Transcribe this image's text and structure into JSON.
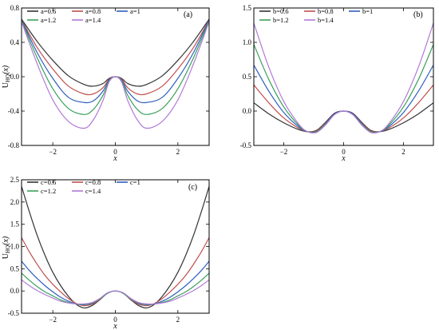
{
  "chart_data": [
    {
      "type": "line",
      "panel": "(a)",
      "ylabel": "U",
      "ylabel_sub": "HQ",
      "ylabel_arg": "(x)",
      "xlabel": "x",
      "xlim": [
        -3,
        3
      ],
      "ylim": [
        -0.8,
        0.8
      ],
      "xticks": [
        -2,
        0,
        2
      ],
      "yticks": [
        -0.8,
        -0.4,
        0.0,
        0.4,
        0.8
      ],
      "ytick_labels": [
        "-0.8",
        "-0.4",
        "0.0",
        "0.4",
        "0.8"
      ],
      "xtick_labels": [
        "−2",
        "0",
        "2"
      ],
      "legend_placement": "top",
      "series": [
        {
          "name": "a=0.6",
          "color": "#333333",
          "x": [
            -3,
            -2.5,
            -2,
            -1.5,
            -1,
            -0.7,
            -0.4,
            -0.2,
            0,
            0.2,
            0.4,
            0.7,
            1,
            1.5,
            2,
            2.5,
            3
          ],
          "y": [
            0.67,
            0.41,
            0.19,
            0.01,
            -0.09,
            -0.11,
            -0.08,
            -0.02,
            0.0,
            -0.02,
            -0.08,
            -0.11,
            -0.09,
            0.01,
            0.19,
            0.41,
            0.67
          ]
        },
        {
          "name": "a=0.8",
          "color": "#c0504d",
          "x": [
            -3,
            -2.5,
            -2,
            -1.5,
            -1,
            -0.7,
            -0.4,
            -0.2,
            0,
            0.2,
            0.4,
            0.7,
            1,
            1.5,
            2,
            2.5,
            3
          ],
          "y": [
            0.66,
            0.34,
            0.09,
            -0.11,
            -0.2,
            -0.2,
            -0.13,
            -0.03,
            0.0,
            -0.03,
            -0.13,
            -0.2,
            -0.2,
            -0.11,
            0.09,
            0.34,
            0.66
          ]
        },
        {
          "name": "a=1",
          "color": "#2e5fbf",
          "x": [
            -3,
            -2.5,
            -2,
            -1.5,
            -1,
            -0.7,
            -0.4,
            -0.2,
            0,
            0.2,
            0.4,
            0.7,
            1,
            1.5,
            2,
            2.5,
            3
          ],
          "y": [
            0.66,
            0.28,
            -0.02,
            -0.24,
            -0.3,
            -0.28,
            -0.17,
            -0.04,
            0.0,
            -0.04,
            -0.17,
            -0.28,
            -0.3,
            -0.24,
            -0.02,
            0.28,
            0.66
          ]
        },
        {
          "name": "a=1.2",
          "color": "#3aa05a",
          "x": [
            -3,
            -2.5,
            -2,
            -1.5,
            -1,
            -0.7,
            -0.4,
            -0.2,
            0,
            0.2,
            0.4,
            0.7,
            1,
            1.5,
            2,
            2.5,
            3
          ],
          "y": [
            0.65,
            0.22,
            -0.14,
            -0.37,
            -0.44,
            -0.38,
            -0.22,
            -0.05,
            0.0,
            -0.05,
            -0.22,
            -0.38,
            -0.44,
            -0.37,
            -0.14,
            0.22,
            0.65
          ]
        },
        {
          "name": "a=1.4",
          "color": "#b07ad8",
          "x": [
            -3,
            -2.5,
            -2,
            -1.5,
            -1,
            -0.7,
            -0.4,
            -0.2,
            0,
            0.2,
            0.4,
            0.7,
            1,
            1.5,
            2,
            2.5,
            3
          ],
          "y": [
            0.64,
            0.15,
            -0.27,
            -0.52,
            -0.6,
            -0.5,
            -0.28,
            -0.06,
            0.0,
            -0.06,
            -0.28,
            -0.5,
            -0.6,
            -0.52,
            -0.27,
            0.15,
            0.64
          ]
        }
      ]
    },
    {
      "type": "line",
      "panel": "(b)",
      "xlabel": "x",
      "xlim": [
        -3,
        3
      ],
      "ylim": [
        -0.5,
        1.5
      ],
      "xticks": [
        -2,
        0,
        2
      ],
      "yticks": [
        -0.5,
        0.0,
        0.5,
        1.0,
        1.5
      ],
      "ytick_labels": [
        "-0.5",
        "0.0",
        "0.5",
        "1.0",
        "1.5"
      ],
      "xtick_labels": [
        "−2",
        "0",
        "2"
      ],
      "legend_placement": "top",
      "series": [
        {
          "name": "b=0.6",
          "color": "#333333",
          "x": [
            -3,
            -2.5,
            -2,
            -1.5,
            -1.2,
            -0.9,
            -0.6,
            -0.3,
            0,
            0.3,
            0.6,
            0.9,
            1.2,
            1.5,
            2,
            2.5,
            3
          ],
          "y": [
            0.12,
            -0.04,
            -0.17,
            -0.27,
            -0.3,
            -0.28,
            -0.16,
            -0.03,
            0.0,
            -0.03,
            -0.16,
            -0.28,
            -0.3,
            -0.27,
            -0.17,
            -0.04,
            0.12
          ]
        },
        {
          "name": "b=0.8",
          "color": "#c0504d",
          "x": [
            -3,
            -2.5,
            -2,
            -1.5,
            -1.2,
            -0.9,
            -0.6,
            -0.3,
            0,
            0.3,
            0.6,
            0.9,
            1.2,
            1.5,
            2,
            2.5,
            3
          ],
          "y": [
            0.38,
            0.12,
            -0.1,
            -0.25,
            -0.3,
            -0.29,
            -0.17,
            -0.04,
            0.0,
            -0.04,
            -0.17,
            -0.29,
            -0.3,
            -0.25,
            -0.1,
            0.12,
            0.38
          ]
        },
        {
          "name": "b=1",
          "color": "#2e5fbf",
          "x": [
            -3,
            -2.5,
            -2,
            -1.5,
            -1.2,
            -0.9,
            -0.6,
            -0.3,
            0,
            0.3,
            0.6,
            0.9,
            1.2,
            1.5,
            2,
            2.5,
            3
          ],
          "y": [
            0.67,
            0.29,
            -0.02,
            -0.23,
            -0.3,
            -0.3,
            -0.18,
            -0.04,
            0.0,
            -0.04,
            -0.18,
            -0.3,
            -0.3,
            -0.23,
            -0.02,
            0.29,
            0.67
          ]
        },
        {
          "name": "b=1.2",
          "color": "#3aa05a",
          "x": [
            -3,
            -2.5,
            -2,
            -1.5,
            -1.2,
            -0.9,
            -0.6,
            -0.3,
            0,
            0.3,
            0.6,
            0.9,
            1.2,
            1.5,
            2,
            2.5,
            3
          ],
          "y": [
            0.97,
            0.46,
            0.06,
            -0.21,
            -0.3,
            -0.3,
            -0.19,
            -0.05,
            0.0,
            -0.05,
            -0.19,
            -0.3,
            -0.3,
            -0.21,
            0.06,
            0.46,
            0.97
          ]
        },
        {
          "name": "b=1.4",
          "color": "#b07ad8",
          "x": [
            -3,
            -2.5,
            -2,
            -1.5,
            -1.2,
            -0.9,
            -0.6,
            -0.3,
            0,
            0.3,
            0.6,
            0.9,
            1.2,
            1.5,
            2,
            2.5,
            3
          ],
          "y": [
            1.28,
            0.64,
            0.14,
            -0.19,
            -0.3,
            -0.31,
            -0.2,
            -0.05,
            0.0,
            -0.05,
            -0.2,
            -0.31,
            -0.3,
            -0.19,
            0.14,
            0.64,
            1.28
          ]
        }
      ]
    },
    {
      "type": "line",
      "panel": "(c)",
      "ylabel": "U",
      "ylabel_sub": "HQ",
      "ylabel_arg": "(x)",
      "xlabel": "x",
      "xlim": [
        -3,
        3
      ],
      "ylim": [
        -0.5,
        2.5
      ],
      "xticks": [
        -2,
        0,
        2
      ],
      "yticks": [
        -0.5,
        0.0,
        0.5,
        1.0,
        1.5,
        2.0,
        2.5
      ],
      "ytick_labels": [
        "-0.5",
        "0.0",
        "0.5",
        "1.0",
        "1.5",
        "2.0",
        "2.5"
      ],
      "xtick_labels": [
        "−2",
        "0",
        "2"
      ],
      "legend_placement": "top",
      "series": [
        {
          "name": "c=0.6",
          "color": "#333333",
          "x": [
            -3,
            -2.75,
            -2.5,
            -2.25,
            -2,
            -1.75,
            -1.5,
            -1.25,
            -1,
            -0.75,
            -0.5,
            -0.25,
            0,
            0.25,
            0.5,
            0.75,
            1,
            1.25,
            1.5,
            1.75,
            2,
            2.25,
            2.5,
            2.75,
            3
          ],
          "y": [
            2.35,
            1.78,
            1.25,
            0.8,
            0.42,
            0.12,
            -0.12,
            -0.3,
            -0.38,
            -0.33,
            -0.2,
            -0.05,
            0.0,
            -0.05,
            -0.2,
            -0.33,
            -0.38,
            -0.3,
            -0.12,
            0.12,
            0.42,
            0.8,
            1.25,
            1.78,
            2.35
          ]
        },
        {
          "name": "c=0.8",
          "color": "#c0504d",
          "x": [
            -3,
            -2.75,
            -2.5,
            -2.25,
            -2,
            -1.75,
            -1.5,
            -1.25,
            -1,
            -0.75,
            -0.5,
            -0.25,
            0,
            0.25,
            0.5,
            0.75,
            1,
            1.25,
            1.5,
            1.75,
            2,
            2.25,
            2.5,
            2.75,
            3
          ],
          "y": [
            1.2,
            0.88,
            0.6,
            0.35,
            0.15,
            -0.02,
            -0.17,
            -0.28,
            -0.33,
            -0.3,
            -0.19,
            -0.05,
            0.0,
            -0.05,
            -0.19,
            -0.3,
            -0.33,
            -0.28,
            -0.17,
            -0.02,
            0.15,
            0.35,
            0.6,
            0.88,
            1.2
          ]
        },
        {
          "name": "c=1",
          "color": "#2e5fbf",
          "x": [
            -3,
            -2.75,
            -2.5,
            -2.25,
            -2,
            -1.75,
            -1.5,
            -1.25,
            -1,
            -0.75,
            -0.5,
            -0.25,
            0,
            0.25,
            0.5,
            0.75,
            1,
            1.25,
            1.5,
            1.75,
            2,
            2.25,
            2.5,
            2.75,
            3
          ],
          "y": [
            0.67,
            0.46,
            0.28,
            0.12,
            -0.02,
            -0.14,
            -0.23,
            -0.29,
            -0.31,
            -0.28,
            -0.18,
            -0.05,
            0.0,
            -0.05,
            -0.18,
            -0.28,
            -0.31,
            -0.29,
            -0.23,
            -0.14,
            -0.02,
            0.12,
            0.28,
            0.46,
            0.67
          ]
        },
        {
          "name": "c=1.2",
          "color": "#3aa05a",
          "x": [
            -3,
            -2.75,
            -2.5,
            -2.25,
            -2,
            -1.75,
            -1.5,
            -1.25,
            -1,
            -0.75,
            -0.5,
            -0.25,
            0,
            0.25,
            0.5,
            0.75,
            1,
            1.25,
            1.5,
            1.75,
            2,
            2.25,
            2.5,
            2.75,
            3
          ],
          "y": [
            0.4,
            0.24,
            0.1,
            -0.02,
            -0.11,
            -0.2,
            -0.26,
            -0.29,
            -0.3,
            -0.27,
            -0.18,
            -0.05,
            0.0,
            -0.05,
            -0.18,
            -0.27,
            -0.3,
            -0.29,
            -0.26,
            -0.2,
            -0.11,
            -0.02,
            0.1,
            0.24,
            0.4
          ]
        },
        {
          "name": "c=1.4",
          "color": "#b07ad8",
          "x": [
            -3,
            -2.75,
            -2.5,
            -2.25,
            -2,
            -1.75,
            -1.5,
            -1.25,
            -1,
            -0.75,
            -0.5,
            -0.25,
            0,
            0.25,
            0.5,
            0.75,
            1,
            1.25,
            1.5,
            1.75,
            2,
            2.25,
            2.5,
            2.75,
            3
          ],
          "y": [
            0.25,
            0.12,
            0.01,
            -0.08,
            -0.16,
            -0.23,
            -0.27,
            -0.29,
            -0.29,
            -0.26,
            -0.17,
            -0.04,
            0.0,
            -0.04,
            -0.17,
            -0.26,
            -0.29,
            -0.29,
            -0.27,
            -0.23,
            -0.16,
            -0.08,
            0.01,
            0.12,
            0.25
          ]
        }
      ]
    }
  ]
}
